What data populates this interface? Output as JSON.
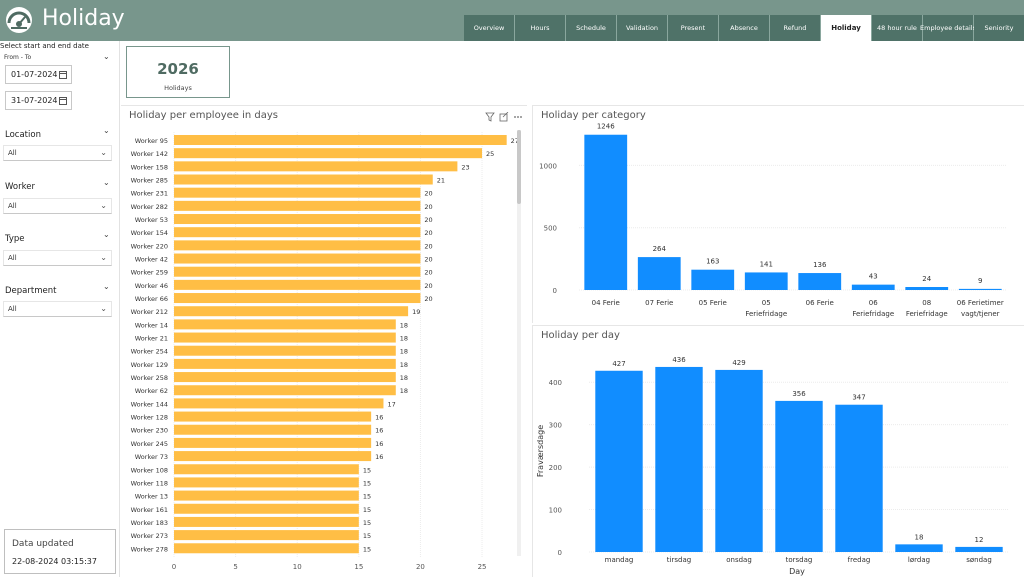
{
  "header": {
    "title": "Holiday",
    "tabs": [
      {
        "label": "Overview",
        "active": false
      },
      {
        "label": "Hours",
        "active": false
      },
      {
        "label": "Schedule",
        "active": false
      },
      {
        "label": "Validation",
        "active": false
      },
      {
        "label": "Present",
        "active": false
      },
      {
        "label": "Absence",
        "active": false
      },
      {
        "label": "Refund",
        "active": false
      },
      {
        "label": "Holiday",
        "active": true
      },
      {
        "label": "48 hour rule",
        "active": false
      },
      {
        "label": "Employee details",
        "active": false
      },
      {
        "label": "Seniority",
        "active": false
      }
    ]
  },
  "sidebar": {
    "date_caption": "Select start and end date",
    "range_label": "From - To",
    "start_date": "01-07-2024",
    "end_date": "31-07-2024",
    "slicers": [
      {
        "title": "Location",
        "value": "All"
      },
      {
        "title": "Worker",
        "value": "All"
      },
      {
        "title": "Type",
        "value": "All"
      },
      {
        "title": "Department",
        "value": "All"
      }
    ],
    "data_updated_label": "Data updated",
    "data_updated_value": "22-08-2024 03:15:37"
  },
  "card": {
    "value": "2026",
    "label": "Holidays"
  },
  "colors": {
    "header": "#78968c",
    "tab": "#4f7268",
    "employee_bar": "#ffbe45",
    "category_bar": "#118dff"
  },
  "chart_data": [
    {
      "type": "bar",
      "orientation": "horizontal",
      "title": "Holiday per employee in days",
      "categories": [
        "Worker 95",
        "Worker 142",
        "Worker 158",
        "Worker 285",
        "Worker 231",
        "Worker 282",
        "Worker 53",
        "Worker 154",
        "Worker 220",
        "Worker 42",
        "Worker 259",
        "Worker 46",
        "Worker 66",
        "Worker 212",
        "Worker 14",
        "Worker 21",
        "Worker 254",
        "Worker 129",
        "Worker 258",
        "Worker 62",
        "Worker 144",
        "Worker 128",
        "Worker 230",
        "Worker 245",
        "Worker 73",
        "Worker 108",
        "Worker 118",
        "Worker 13",
        "Worker 161",
        "Worker 183",
        "Worker 273",
        "Worker 278"
      ],
      "values": [
        27,
        25,
        23,
        21,
        20,
        20,
        20,
        20,
        20,
        20,
        20,
        20,
        20,
        19,
        18,
        18,
        18,
        18,
        18,
        18,
        17,
        16,
        16,
        16,
        16,
        15,
        15,
        15,
        15,
        15,
        15,
        15
      ],
      "xticks": [
        0,
        5,
        10,
        15,
        20,
        25
      ],
      "xlim": [
        0,
        28
      ],
      "xlabel": "",
      "ylabel": "",
      "grid": true
    },
    {
      "type": "bar",
      "title": "Holiday per category",
      "categories": [
        "04 Ferie",
        "07 Ferie",
        "05 Ferie",
        "05 Feriefridage",
        "06 Ferie",
        "06 Feriefridage",
        "08 Feriefridage",
        "06 Ferietimer vagt/tjener"
      ],
      "values": [
        1246,
        264,
        163,
        141,
        136,
        43,
        24,
        9
      ],
      "yticks": [
        0,
        500,
        1000
      ],
      "ylim": [
        0,
        1300
      ],
      "xlabel": "",
      "ylabel": "",
      "grid": true
    },
    {
      "type": "bar",
      "title": "Holiday per day",
      "categories": [
        "mandag",
        "tirsdag",
        "onsdag",
        "torsdag",
        "fredag",
        "lørdag",
        "søndag"
      ],
      "values": [
        427,
        436,
        429,
        356,
        347,
        18,
        12
      ],
      "yticks": [
        0,
        100,
        200,
        300,
        400
      ],
      "ylim": [
        0,
        450
      ],
      "xlabel": "Day",
      "ylabel": "Fraværsdage",
      "grid": true
    }
  ]
}
